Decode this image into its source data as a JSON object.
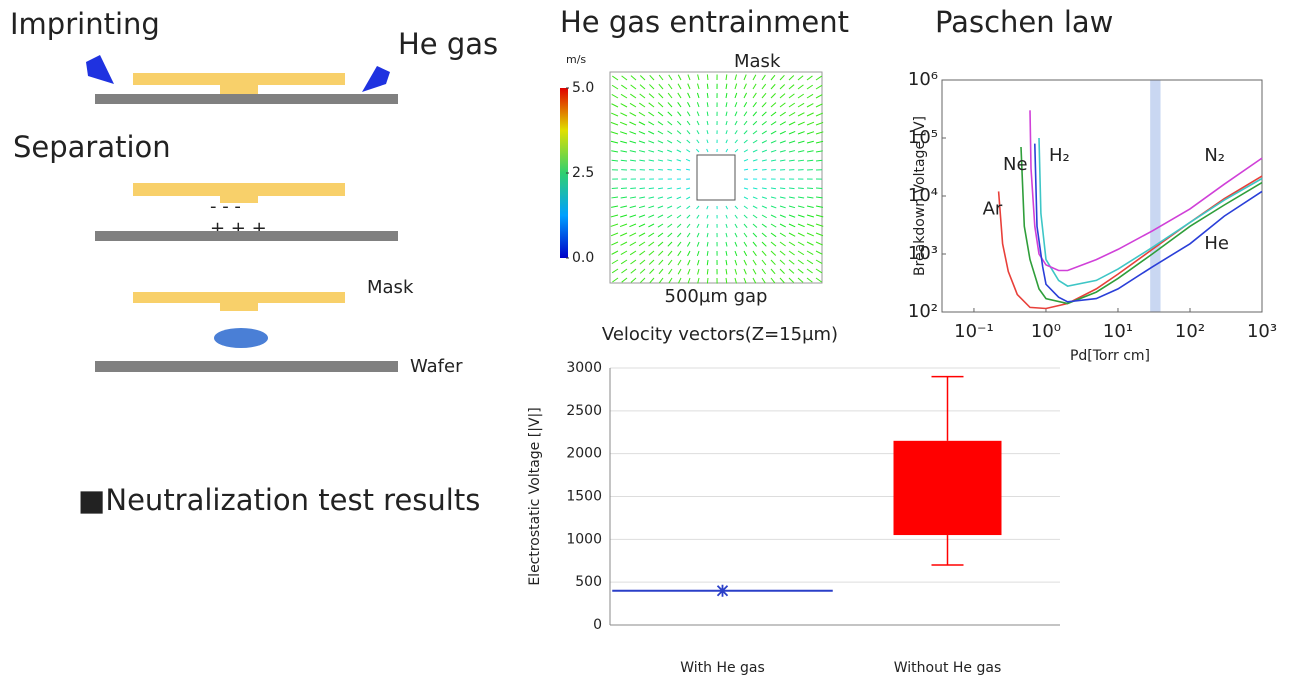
{
  "diagram": {
    "imprinting": "Imprinting",
    "he_gas": "He gas",
    "separation": "Separation",
    "minus": "-  -  -",
    "plus": "+ + +",
    "mask": "Mask",
    "wafer": "Wafer"
  },
  "neutralization": "■Neutralization test results",
  "flow": {
    "title": "He gas entrainment",
    "unit": "m/s",
    "colorbar_ticks": [
      {
        "value": 5,
        "label": "5.0"
      },
      {
        "value": 2.5,
        "label": "2.5"
      },
      {
        "value": 0,
        "label": "0.0"
      }
    ],
    "colorbar_lim": [
      0,
      5
    ],
    "mask": "Mask",
    "gap": "500µm gap",
    "caption": "Velocity vectors(Z=15µm)"
  },
  "chart_data": [
    {
      "type": "line",
      "title": "Paschen law",
      "x_label": "Pd[Torr cm]",
      "y_label": "Breakdown Voltage [V]",
      "log_x": true,
      "log_y": true,
      "xlim": [
        0.036,
        1000
      ],
      "ylim": [
        100,
        1000000
      ],
      "xticks": [
        {
          "value": 0.1,
          "label": "10⁻¹"
        },
        {
          "value": 1,
          "label": "10⁰"
        },
        {
          "value": 10,
          "label": "10¹"
        },
        {
          "value": 100,
          "label": "10²"
        },
        {
          "value": 1000,
          "label": "10³"
        }
      ],
      "yticks": [
        {
          "value": 100,
          "label": "10²"
        },
        {
          "value": 1000,
          "label": "10³"
        },
        {
          "value": 10000,
          "label": "10⁴"
        },
        {
          "value": 100000,
          "label": "10⁵"
        },
        {
          "value": 1000000,
          "label": "10⁶"
        }
      ],
      "highlight_x": [
        28,
        39
      ],
      "highlight_color": "#c9d7f2",
      "series": [
        {
          "name": "Ar",
          "color": "#e8403a",
          "x": [
            0.22,
            0.25,
            0.3,
            0.4,
            0.6,
            1,
            2,
            5,
            10,
            30,
            100,
            300,
            1000
          ],
          "values": [
            12000,
            1500,
            500,
            200,
            120,
            115,
            140,
            250,
            450,
            1200,
            3500,
            9000,
            22000
          ]
        },
        {
          "name": "Ne",
          "color": "#2f9e3a",
          "x": [
            0.45,
            0.5,
            0.6,
            0.8,
            1,
            2,
            5,
            10,
            30,
            100,
            300,
            1000
          ],
          "values": [
            70000,
            3000,
            800,
            250,
            170,
            140,
            220,
            380,
            1000,
            3000,
            7000,
            17000
          ]
        },
        {
          "name": "H₂",
          "color": "#3ec6c6",
          "x": [
            0.8,
            0.85,
            1,
            1.5,
            2,
            5,
            10,
            30,
            100,
            300,
            1000
          ],
          "values": [
            100000,
            5000,
            800,
            350,
            280,
            350,
            550,
            1300,
            3500,
            8500,
            20000
          ]
        },
        {
          "name": "N₂",
          "color": "#d040d8",
          "x": [
            0.6,
            0.62,
            0.7,
            0.8,
            1,
            1.5,
            2,
            5,
            10,
            30,
            100,
            300,
            1000
          ],
          "values": [
            300000,
            30000,
            3000,
            1000,
            650,
            520,
            520,
            800,
            1200,
            2500,
            6000,
            16000,
            45000
          ]
        },
        {
          "name": "He",
          "color": "#2a3fd8",
          "x": [
            0.7,
            0.75,
            0.9,
            1,
            1.5,
            2,
            5,
            10,
            30,
            100,
            300,
            1000
          ],
          "values": [
            80000,
            3000,
            600,
            300,
            180,
            150,
            170,
            250,
            600,
            1500,
            4500,
            12000
          ]
        }
      ]
    },
    {
      "type": "box",
      "y_label": "Electrostatic Voltage [|V|]",
      "categories": [
        "With He gas",
        "Without He gas"
      ],
      "min": [
        400,
        700
      ],
      "q1": [
        400,
        1050
      ],
      "q3": [
        400,
        2150
      ],
      "max": [
        400,
        2900
      ],
      "colors": [
        "#2a3fc8",
        "#ff0000"
      ],
      "ylim": [
        0,
        3000
      ],
      "yticks": [
        0,
        500,
        1000,
        1500,
        2000,
        2500,
        3000
      ],
      "grid": true
    }
  ]
}
